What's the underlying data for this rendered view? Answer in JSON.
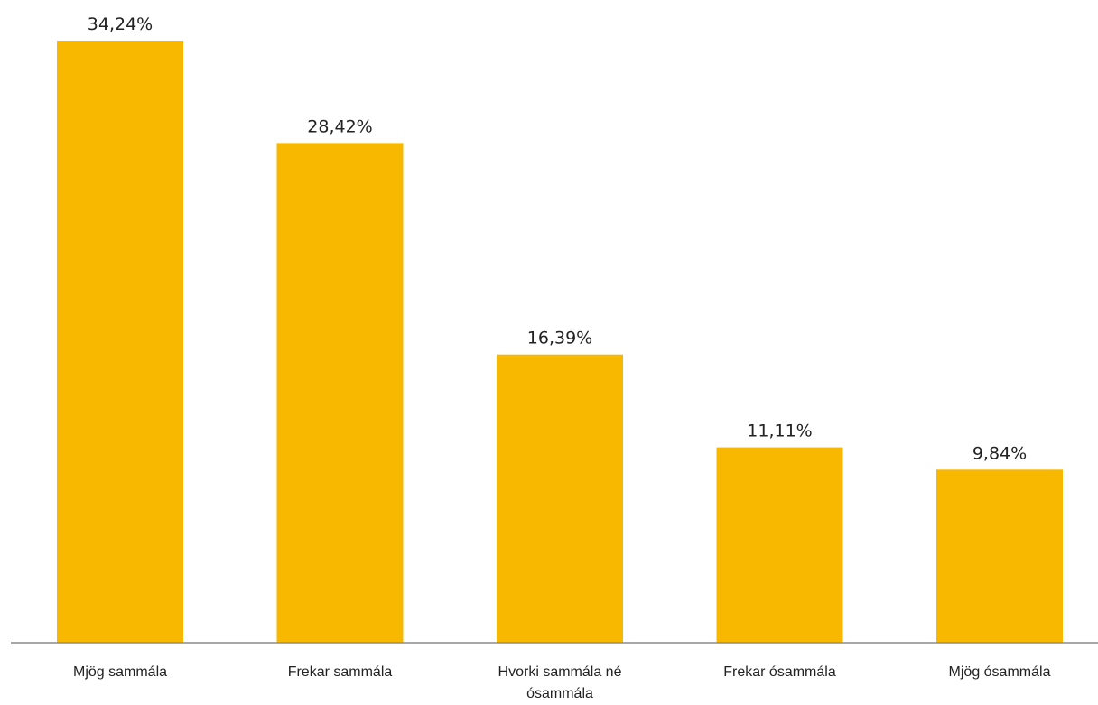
{
  "chart_data": {
    "type": "bar",
    "categories": [
      "Mjög sammála",
      "Frekar sammála",
      "Hvorki sammála né ósammála",
      "Frekar ósammála",
      "Mjög ósammála"
    ],
    "category_lines": [
      [
        "Mjög sammála"
      ],
      [
        "Frekar sammála"
      ],
      [
        "Hvorki sammála né",
        "ósammála"
      ],
      [
        "Frekar ósammála"
      ],
      [
        "Mjög ósammála"
      ]
    ],
    "values": [
      34.24,
      28.42,
      16.39,
      11.11,
      9.84
    ],
    "value_labels": [
      "34,24%",
      "28,42%",
      "16,39%",
      "11,11%",
      "9,84%"
    ],
    "title": "",
    "xlabel": "",
    "ylabel": "",
    "ylim": [
      0,
      36
    ],
    "grid": false,
    "legend": "none",
    "colors": {
      "bar": "#F9B800",
      "axis": "#8C8C8C",
      "text": "#222222"
    }
  }
}
